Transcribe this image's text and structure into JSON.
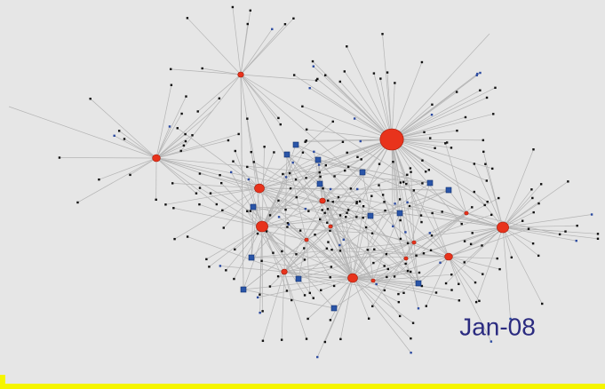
{
  "label": "Jan-08"
}
